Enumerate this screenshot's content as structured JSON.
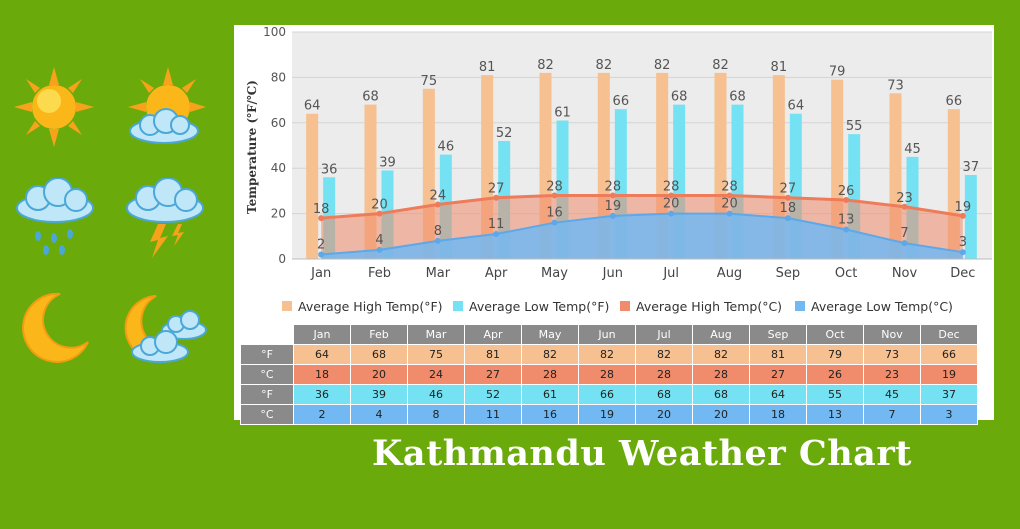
{
  "caption": "Kathmandu Weather Chart",
  "icons": [
    {
      "name": "sun-icon"
    },
    {
      "name": "sun-cloud-icon"
    },
    {
      "name": "rain-cloud-icon"
    },
    {
      "name": "thunderstorm-icon"
    },
    {
      "name": "moon-icon"
    },
    {
      "name": "moon-cloud-icon"
    }
  ],
  "colors": {
    "background": "#6aab0b",
    "high_f": "#f6c090",
    "low_f": "#74e2f2",
    "high_c": "#f08c6c",
    "low_c": "#72b8f2"
  },
  "chart_data": {
    "type": "bar",
    "title": "",
    "xlabel": "",
    "ylabel": "Temperature (℉/℃)",
    "ylim": [
      0,
      100
    ],
    "yticks": [
      "0",
      "20",
      "40",
      "60",
      "80",
      "100"
    ],
    "grid": true,
    "legend_position": "bottom",
    "categories": [
      "Jan",
      "Feb",
      "Mar",
      "Apr",
      "May",
      "Jun",
      "Jul",
      "Aug",
      "Sep",
      "Oct",
      "Nov",
      "Dec"
    ],
    "series": [
      {
        "name": "Average High Temp(°F)",
        "kind": "bar",
        "values": [
          64,
          68,
          75,
          81,
          82,
          82,
          82,
          82,
          81,
          79,
          73,
          66
        ]
      },
      {
        "name": "Average Low Temp(°F)",
        "kind": "bar",
        "values": [
          36,
          39,
          46,
          52,
          61,
          66,
          68,
          68,
          64,
          55,
          45,
          37
        ]
      },
      {
        "name": "Average High Temp(°C)",
        "kind": "area",
        "values": [
          18,
          20,
          24,
          27,
          28,
          28,
          28,
          28,
          27,
          26,
          23,
          19
        ]
      },
      {
        "name": "Average Low Temp(°C)",
        "kind": "area",
        "values": [
          2,
          4,
          8,
          11,
          16,
          19,
          20,
          20,
          18,
          13,
          7,
          3
        ]
      }
    ]
  },
  "table": {
    "row_labels": [
      "°F",
      "°C",
      "°F",
      "°C"
    ]
  }
}
